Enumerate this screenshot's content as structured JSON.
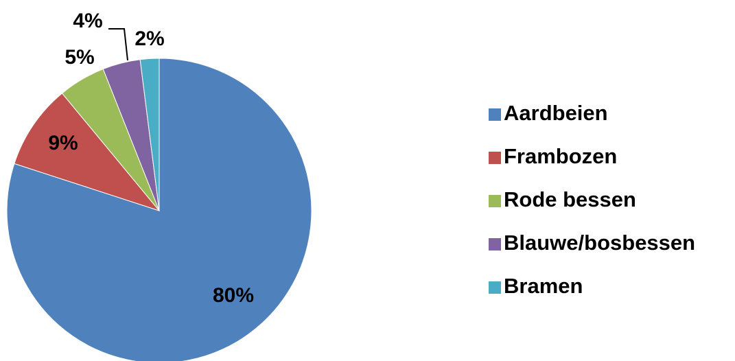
{
  "chart_data": {
    "type": "pie",
    "categories": [
      "Aardbeien",
      "Frambozen",
      "Rode bessen",
      "Blauwe/bosbessen",
      "Bramen"
    ],
    "values": [
      80,
      9,
      5,
      4,
      2
    ],
    "value_labels": [
      "80%",
      "9%",
      "5%",
      "4%",
      "2%"
    ],
    "colors": [
      "#4f81bd",
      "#c0504d",
      "#9bbb59",
      "#8064a2",
      "#4bacc6"
    ],
    "legend": "right"
  }
}
